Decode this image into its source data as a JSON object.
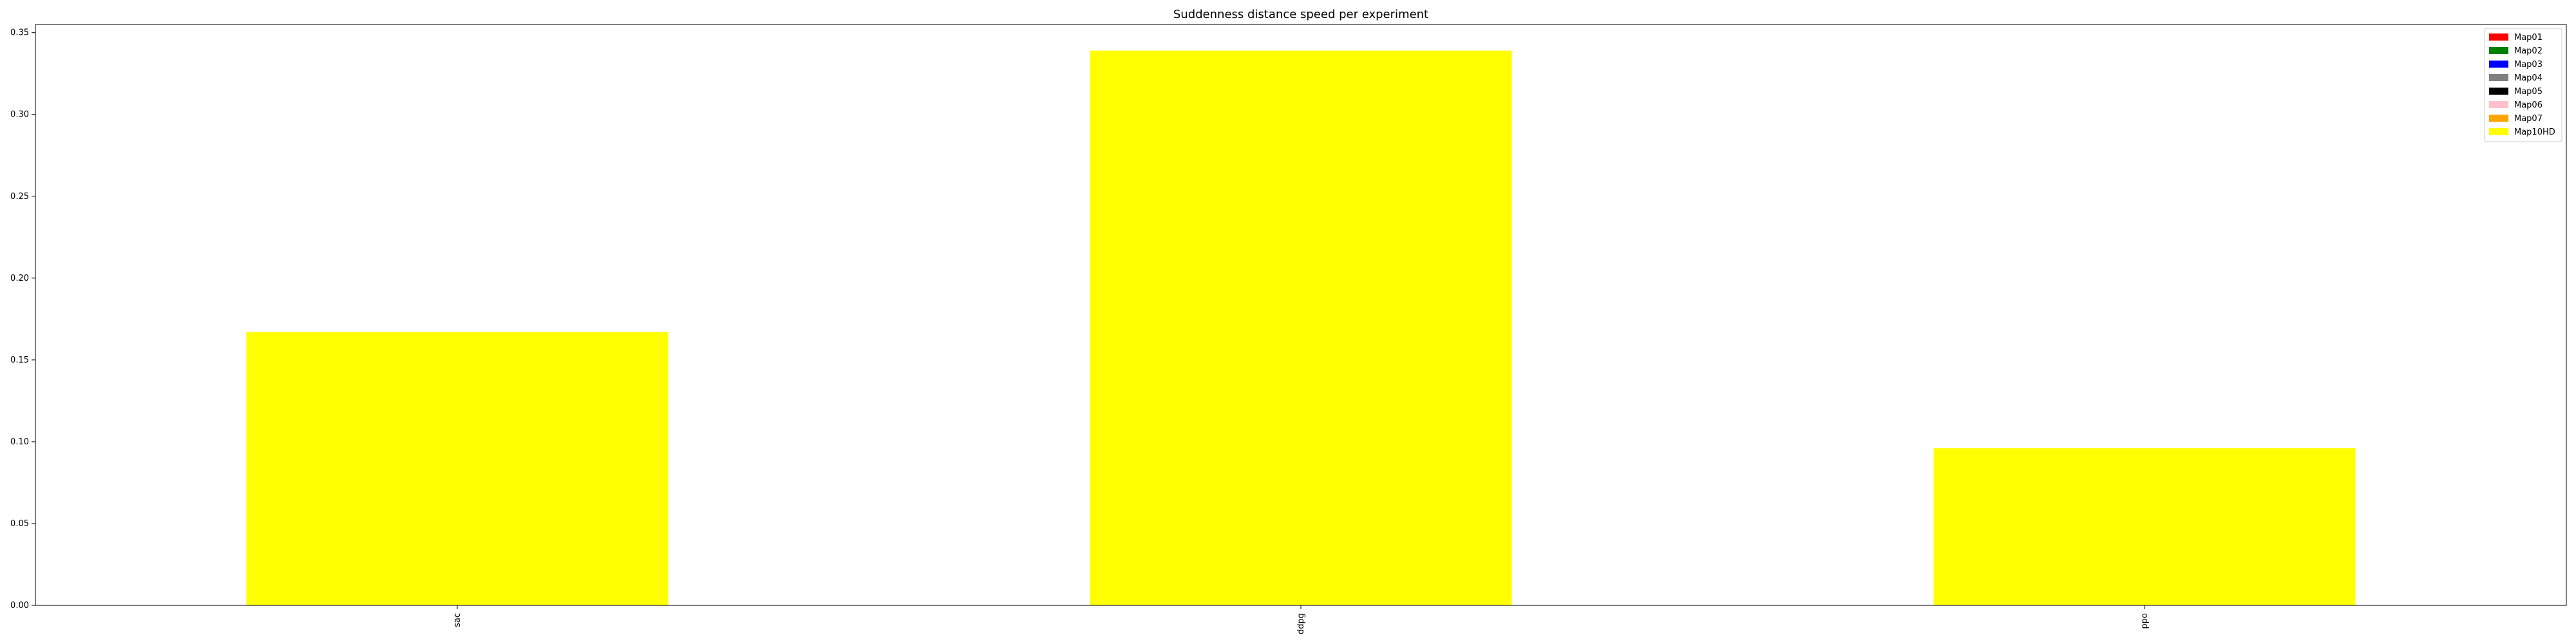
{
  "chart_data": {
    "type": "bar",
    "title": "Suddenness distance speed per experiment",
    "xlabel": "",
    "ylabel": "",
    "categories": [
      "sac",
      "ddpg",
      "ppo"
    ],
    "series": [
      {
        "name": "Map10HD",
        "color": "#ffff00",
        "values": [
          0.167,
          0.339,
          0.096
        ]
      }
    ],
    "ylim": [
      0,
      0.355
    ],
    "yticks": [
      0.0,
      0.05,
      0.1,
      0.15,
      0.2,
      0.25,
      0.3,
      0.35
    ],
    "ytick_labels": [
      "0.00",
      "0.05",
      "0.10",
      "0.15",
      "0.20",
      "0.25",
      "0.30",
      "0.35"
    ],
    "grid": false,
    "legend_position": "top-right",
    "legend": [
      {
        "name": "Map01",
        "color": "#ff0000"
      },
      {
        "name": "Map02",
        "color": "#008000"
      },
      {
        "name": "Map03",
        "color": "#0000ff"
      },
      {
        "name": "Map04",
        "color": "#808080"
      },
      {
        "name": "Map05",
        "color": "#000000"
      },
      {
        "name": "Map06",
        "color": "#ffc0cb"
      },
      {
        "name": "Map07",
        "color": "#ffa500"
      },
      {
        "name": "Map10HD",
        "color": "#ffff00"
      }
    ]
  }
}
